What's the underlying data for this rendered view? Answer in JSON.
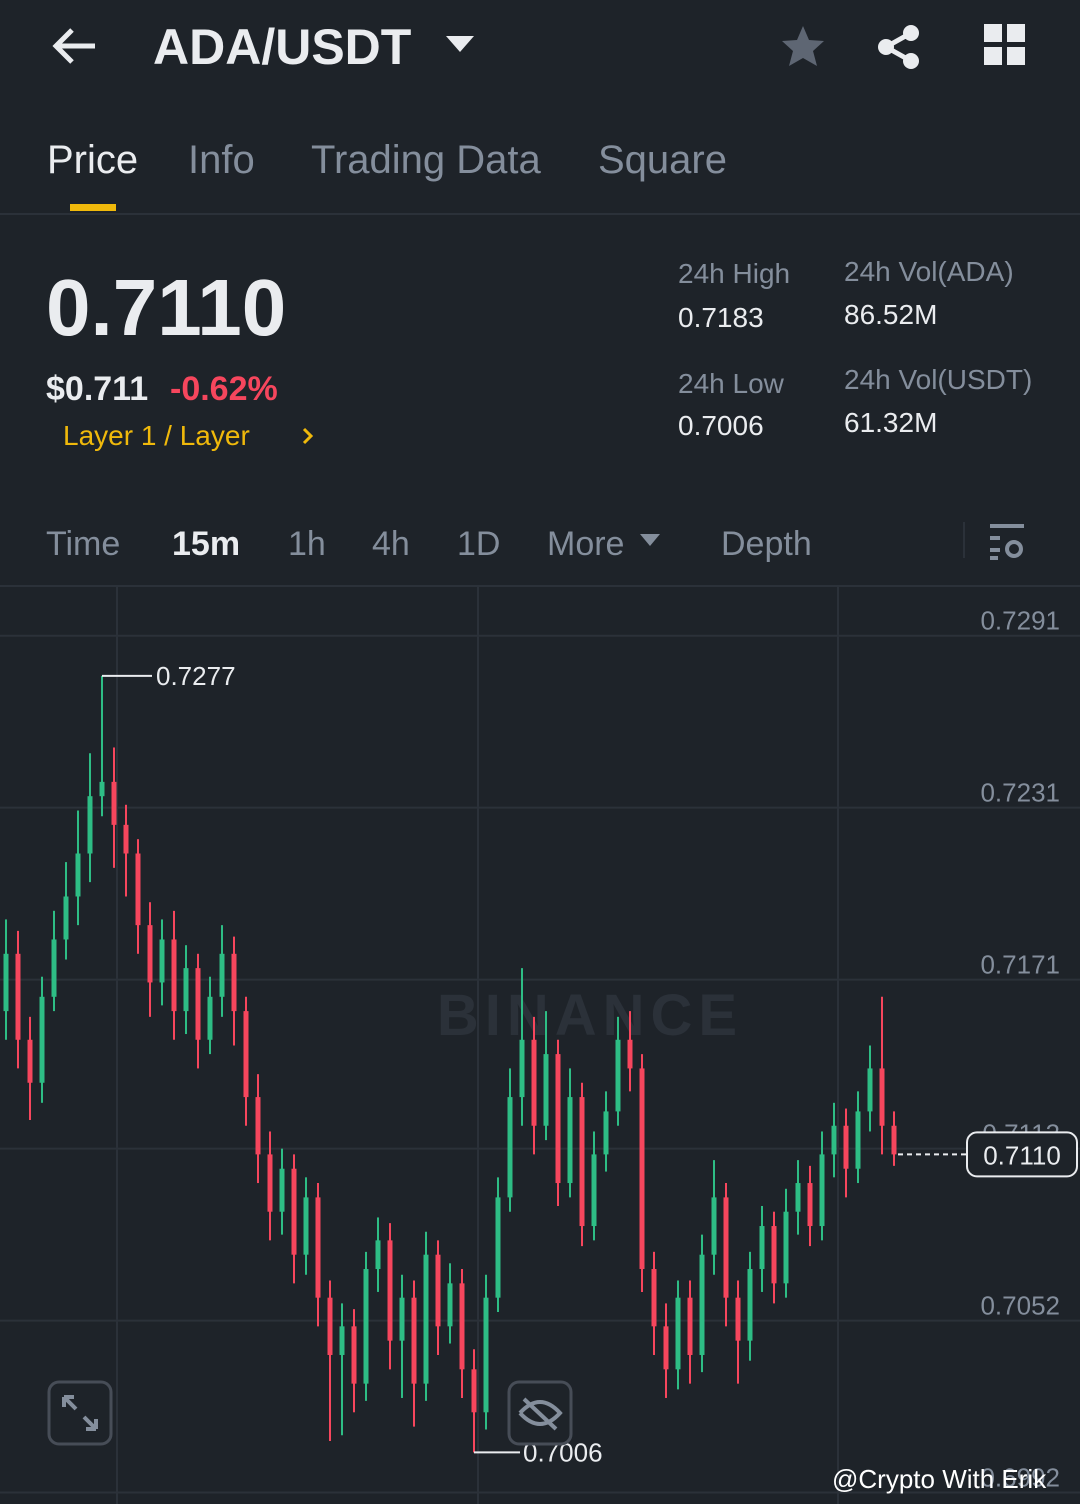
{
  "header": {
    "pair": "ADA/USDT"
  },
  "tabs": [
    "Price",
    "Info",
    "Trading Data",
    "Square"
  ],
  "ticker": {
    "price": "0.7110",
    "usd_price": "$0.711",
    "change": "-0.62%",
    "tag": "Layer 1 / Layer",
    "stats": [
      {
        "label": "24h High",
        "value": "0.7183"
      },
      {
        "label": "24h Vol(ADA)",
        "value": "86.52M"
      },
      {
        "label": "24h Low",
        "value": "0.7006"
      },
      {
        "label": "24h Vol(USDT)",
        "value": "61.32M"
      }
    ]
  },
  "intervals": [
    "Time",
    "15m",
    "1h",
    "4h",
    "1D",
    "More",
    "Depth"
  ],
  "credit": "@Crypto With Erik",
  "chart_data": {
    "type": "candlestick",
    "watermark": "BINANCE",
    "up_color": "#2ebd85",
    "down_color": "#f6465d",
    "grid": true,
    "ylim": [
      0.6988,
      0.7308
    ],
    "yticks": [
      0.7291,
      0.7231,
      0.7171,
      0.7112,
      0.7052,
      0.6992
    ],
    "open": [
      0.716,
      0.718,
      0.715,
      0.7135,
      0.7165,
      0.7185,
      0.72,
      0.7215,
      0.7235,
      0.724,
      0.7225,
      0.7215,
      0.719,
      0.717,
      0.7185,
      0.716,
      0.7175,
      0.715,
      0.7165,
      0.718,
      0.716,
      0.713,
      0.711,
      0.709,
      0.7105,
      0.7075,
      0.7095,
      0.706,
      0.704,
      0.705,
      0.703,
      0.707,
      0.708,
      0.7045,
      0.706,
      0.703,
      0.7075,
      0.705,
      0.7065,
      0.7035,
      0.702,
      0.706,
      0.7095,
      0.713,
      0.715,
      0.712,
      0.7145,
      0.71,
      0.713,
      0.7085,
      0.711,
      0.7125,
      0.715,
      0.714,
      0.707,
      0.705,
      0.7035,
      0.706,
      0.704,
      0.7075,
      0.7095,
      0.706,
      0.7045,
      0.707,
      0.7085,
      0.7065,
      0.709,
      0.71,
      0.7085,
      0.711,
      0.712,
      0.7105,
      0.7125,
      0.714,
      0.712
    ],
    "high": [
      0.7192,
      0.7188,
      0.7158,
      0.7172,
      0.7195,
      0.7212,
      0.723,
      0.725,
      0.7277,
      0.7252,
      0.7232,
      0.722,
      0.7198,
      0.7192,
      0.7195,
      0.7183,
      0.718,
      0.7172,
      0.719,
      0.7186,
      0.7165,
      0.7138,
      0.7118,
      0.7112,
      0.711,
      0.7102,
      0.71,
      0.7066,
      0.7058,
      0.7056,
      0.7076,
      0.7088,
      0.7086,
      0.7068,
      0.7066,
      0.7083,
      0.708,
      0.7072,
      0.707,
      0.7042,
      0.7068,
      0.7102,
      0.714,
      0.7175,
      0.7158,
      0.716,
      0.715,
      0.714,
      0.7135,
      0.7118,
      0.7132,
      0.7158,
      0.716,
      0.7145,
      0.7076,
      0.7058,
      0.7066,
      0.7066,
      0.7082,
      0.7108,
      0.71,
      0.7066,
      0.7076,
      0.7092,
      0.709,
      0.7098,
      0.7108,
      0.7106,
      0.7118,
      0.7128,
      0.7126,
      0.7132,
      0.7148,
      0.7165,
      0.7125
    ],
    "low": [
      0.715,
      0.714,
      0.7122,
      0.7128,
      0.716,
      0.7178,
      0.719,
      0.7205,
      0.7228,
      0.721,
      0.72,
      0.718,
      0.7158,
      0.7162,
      0.715,
      0.7152,
      0.714,
      0.7145,
      0.7158,
      0.7148,
      0.712,
      0.71,
      0.708,
      0.7082,
      0.7065,
      0.7068,
      0.705,
      0.701,
      0.7012,
      0.702,
      0.7024,
      0.7062,
      0.7035,
      0.7025,
      0.7015,
      0.7024,
      0.704,
      0.7044,
      0.7025,
      0.7006,
      0.7014,
      0.7055,
      0.709,
      0.712,
      0.711,
      0.7115,
      0.7092,
      0.7095,
      0.7078,
      0.708,
      0.7104,
      0.712,
      0.7132,
      0.7062,
      0.704,
      0.7025,
      0.7028,
      0.703,
      0.7034,
      0.7068,
      0.705,
      0.703,
      0.7038,
      0.7062,
      0.7058,
      0.706,
      0.7082,
      0.7078,
      0.708,
      0.7102,
      0.7095,
      0.71,
      0.7118,
      0.711,
      0.7106
    ],
    "close": [
      0.718,
      0.715,
      0.7135,
      0.7165,
      0.7185,
      0.72,
      0.7215,
      0.7235,
      0.724,
      0.7225,
      0.7215,
      0.719,
      0.717,
      0.7185,
      0.716,
      0.7175,
      0.715,
      0.7165,
      0.718,
      0.716,
      0.713,
      0.711,
      0.709,
      0.7105,
      0.7075,
      0.7095,
      0.706,
      0.704,
      0.705,
      0.703,
      0.707,
      0.708,
      0.7045,
      0.706,
      0.703,
      0.7075,
      0.705,
      0.7065,
      0.7035,
      0.702,
      0.706,
      0.7095,
      0.713,
      0.715,
      0.712,
      0.7145,
      0.71,
      0.713,
      0.7085,
      0.711,
      0.7125,
      0.715,
      0.714,
      0.707,
      0.705,
      0.7035,
      0.706,
      0.704,
      0.7075,
      0.7095,
      0.706,
      0.7045,
      0.707,
      0.7085,
      0.7065,
      0.709,
      0.71,
      0.7085,
      0.711,
      0.712,
      0.7105,
      0.7125,
      0.714,
      0.712,
      0.711
    ],
    "max_label": 0.7277,
    "min_label": 0.7006,
    "last_price": {
      "value": 0.711,
      "label": "0.7110"
    }
  }
}
